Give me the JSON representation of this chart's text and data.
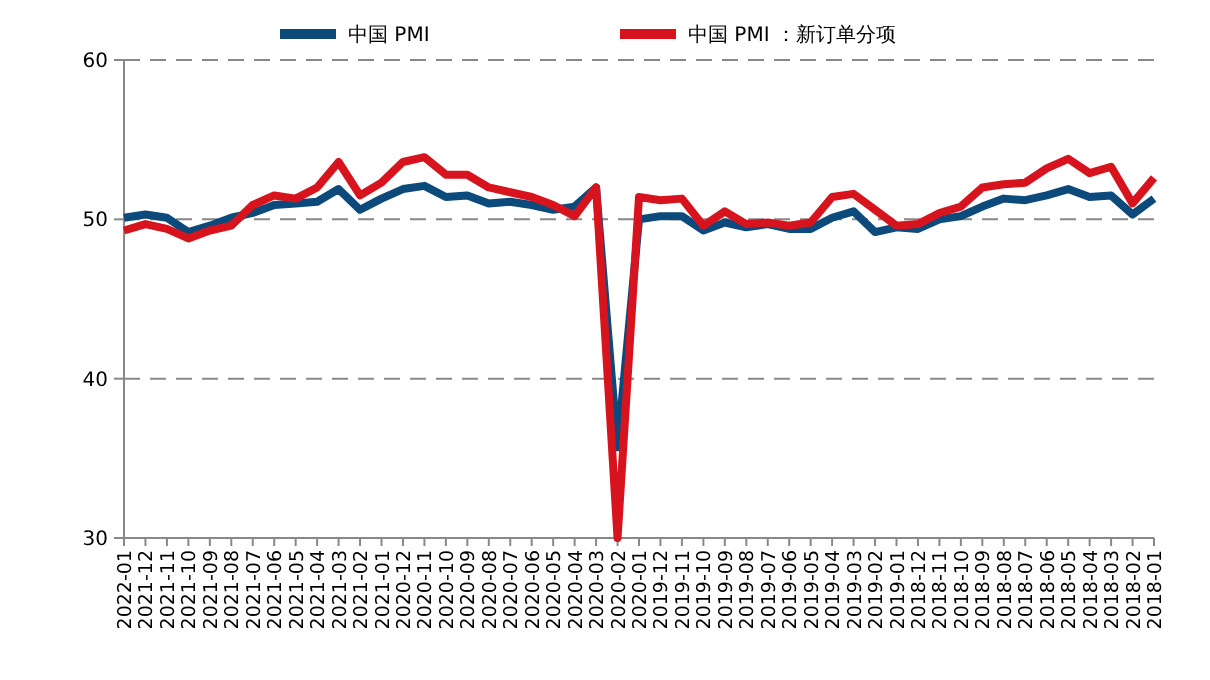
{
  "chart_data": {
    "type": "line",
    "categories": [
      "2022-01",
      "2021-12",
      "2021-11",
      "2021-10",
      "2021-09",
      "2021-08",
      "2021-07",
      "2021-06",
      "2021-05",
      "2021-04",
      "2021-03",
      "2021-02",
      "2021-01",
      "2020-12",
      "2020-11",
      "2020-10",
      "2020-09",
      "2020-08",
      "2020-07",
      "2020-06",
      "2020-05",
      "2020-04",
      "2020-03",
      "2020-02",
      "2020-01",
      "2019-12",
      "2019-11",
      "2019-10",
      "2019-09",
      "2019-08",
      "2019-07",
      "2019-06",
      "2019-05",
      "2019-04",
      "2019-03",
      "2019-02",
      "2019-01",
      "2018-12",
      "2018-11",
      "2018-10",
      "2018-09",
      "2018-08",
      "2018-07",
      "2018-06",
      "2018-05",
      "2018-04",
      "2018-03",
      "2018-02",
      "2018-01"
    ],
    "series": [
      {
        "name": "中国 PMI",
        "color": "#0d4a7c",
        "values": [
          50.1,
          50.3,
          50.1,
          49.2,
          49.6,
          50.1,
          50.4,
          50.9,
          51.0,
          51.1,
          51.9,
          50.6,
          51.3,
          51.9,
          52.1,
          51.4,
          51.5,
          51.0,
          51.1,
          50.9,
          50.6,
          50.8,
          52.0,
          35.7,
          50.0,
          50.2,
          50.2,
          49.3,
          49.8,
          49.5,
          49.7,
          49.4,
          49.4,
          50.1,
          50.5,
          49.2,
          49.5,
          49.4,
          50.0,
          50.2,
          50.8,
          51.3,
          51.2,
          51.5,
          51.9,
          51.4,
          51.5,
          50.3,
          51.3
        ]
      },
      {
        "name": "中国 PMI ：新订单分项",
        "color": "#d7141e",
        "values": [
          49.3,
          49.7,
          49.4,
          48.8,
          49.3,
          49.6,
          50.9,
          51.5,
          51.3,
          52.0,
          53.6,
          51.5,
          52.3,
          53.6,
          53.9,
          52.8,
          52.8,
          52.0,
          51.7,
          51.4,
          50.9,
          50.2,
          52.0,
          30,
          51.4,
          51.2,
          51.3,
          49.6,
          50.5,
          49.7,
          49.8,
          49.6,
          49.8,
          51.4,
          51.6,
          50.6,
          49.6,
          49.7,
          50.4,
          50.8,
          52.0,
          52.2,
          52.3,
          53.2,
          53.8,
          52.9,
          53.3,
          51.0,
          52.6
        ]
      }
    ],
    "ylim": [
      30,
      60
    ],
    "yticks": [
      30,
      40,
      50,
      60
    ],
    "grid": "y",
    "legend": "top",
    "line_style": "solid",
    "marker": "none"
  }
}
